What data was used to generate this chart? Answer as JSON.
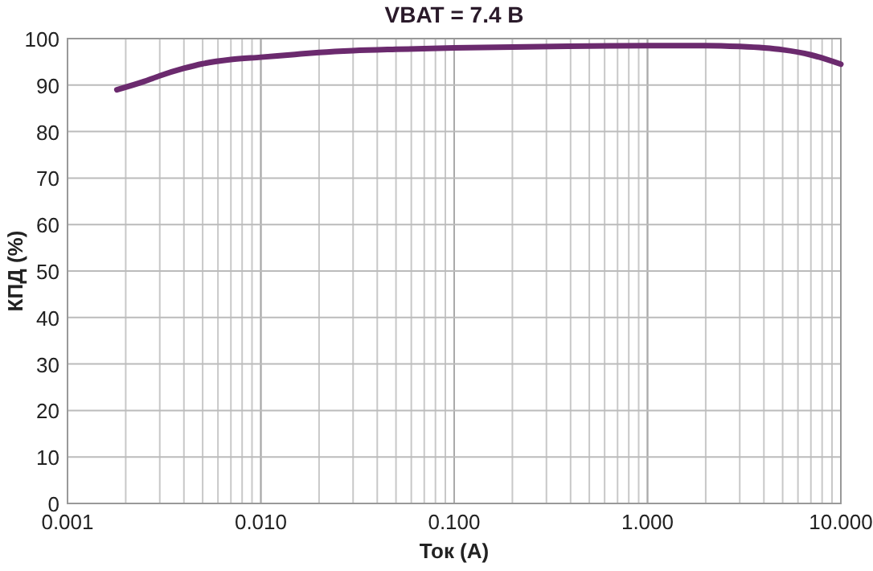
{
  "chart_data": {
    "type": "line",
    "title": "VBAT = 7.4 В",
    "xlabel": "Ток (А)",
    "ylabel": "КПД (%)",
    "log": "x",
    "grid": true,
    "xlim": [
      0.001,
      10
    ],
    "xticks": [
      {
        "value": 0.001,
        "label": "0.001"
      },
      {
        "value": 0.01,
        "label": "0.010"
      },
      {
        "value": 0.1,
        "label": "0.100"
      },
      {
        "value": 1,
        "label": "1.000"
      },
      {
        "value": 10,
        "label": "10.000"
      }
    ],
    "ylim": [
      0,
      100
    ],
    "yticks": [
      0,
      10,
      20,
      30,
      40,
      50,
      60,
      70,
      80,
      90,
      100
    ],
    "series": [
      {
        "color": "#6b2a6e",
        "x": [
          0.0018,
          0.0025,
          0.003,
          0.004,
          0.005,
          0.007,
          0.01,
          0.015,
          0.02,
          0.03,
          0.05,
          0.1,
          0.2,
          0.5,
          1,
          2,
          3,
          4,
          5,
          7,
          10
        ],
        "values": [
          89,
          90.8,
          92,
          93.6,
          94.6,
          95.5,
          96,
          96.6,
          97,
          97.4,
          97.7,
          98,
          98.2,
          98.4,
          98.5,
          98.5,
          98.3,
          98,
          97.6,
          96.5,
          94.5
        ]
      }
    ]
  }
}
